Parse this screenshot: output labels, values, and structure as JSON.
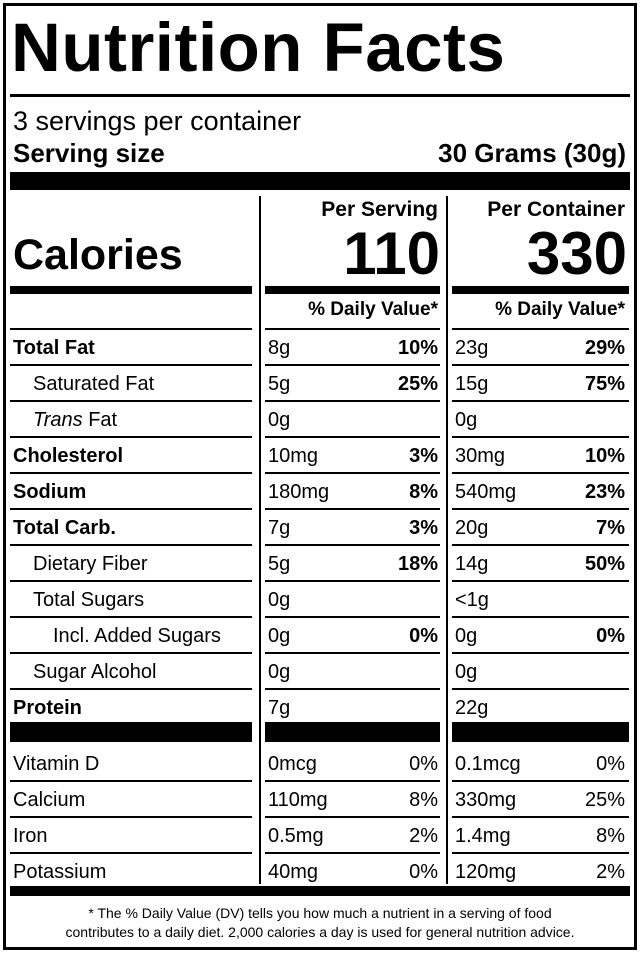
{
  "title": "Nutrition Facts",
  "servings_per_container": "3 servings per container",
  "serving_size_label": "Serving size",
  "serving_size_value": "30 Grams (30g)",
  "columns": {
    "per_serving": "Per Serving",
    "per_container": "Per Container",
    "daily_value": "% Daily Value*"
  },
  "calories": {
    "label": "Calories",
    "per_serving": "110",
    "per_container": "330"
  },
  "nutrients": [
    {
      "name": "Total Fat",
      "bold": true,
      "indent": 0,
      "s_amt": "8g",
      "s_pct": "10%",
      "c_amt": "23g",
      "c_pct": "29%"
    },
    {
      "name": "Saturated Fat",
      "bold": false,
      "indent": 1,
      "s_amt": "5g",
      "s_pct": "25%",
      "c_amt": "15g",
      "c_pct": "75%"
    },
    {
      "name_italic": "Trans",
      "name": " Fat",
      "bold": false,
      "indent": 1,
      "s_amt": "0g",
      "s_pct": "",
      "c_amt": "0g",
      "c_pct": ""
    },
    {
      "name": "Cholesterol",
      "bold": true,
      "indent": 0,
      "s_amt": "10mg",
      "s_pct": "3%",
      "c_amt": "30mg",
      "c_pct": "10%"
    },
    {
      "name": "Sodium",
      "bold": true,
      "indent": 0,
      "s_amt": "180mg",
      "s_pct": "8%",
      "c_amt": "540mg",
      "c_pct": "23%"
    },
    {
      "name": "Total Carb.",
      "bold": true,
      "indent": 0,
      "s_amt": "7g",
      "s_pct": "3%",
      "c_amt": "20g",
      "c_pct": "7%"
    },
    {
      "name": "Dietary Fiber",
      "bold": false,
      "indent": 1,
      "s_amt": "5g",
      "s_pct": "18%",
      "c_amt": "14g",
      "c_pct": "50%"
    },
    {
      "name": "Total Sugars",
      "bold": false,
      "indent": 1,
      "s_amt": "0g",
      "s_pct": "",
      "c_amt": "<1g",
      "c_pct": ""
    },
    {
      "name": "Incl. Added Sugars",
      "bold": false,
      "indent": 2,
      "s_amt": "0g",
      "s_pct": "0%",
      "c_amt": "0g",
      "c_pct": "0%"
    },
    {
      "name": "Sugar Alcohol",
      "bold": false,
      "indent": 1,
      "s_amt": "0g",
      "s_pct": "",
      "c_amt": "0g",
      "c_pct": ""
    },
    {
      "name": "Protein",
      "bold": true,
      "indent": 0,
      "s_amt": "7g",
      "s_pct": "",
      "c_amt": "22g",
      "c_pct": ""
    }
  ],
  "vitamins": [
    {
      "name": "Vitamin D",
      "s_amt": "0mcg",
      "s_pct": "0%",
      "c_amt": "0.1mcg",
      "c_pct": "0%"
    },
    {
      "name": "Calcium",
      "s_amt": "110mg",
      "s_pct": "8%",
      "c_amt": "330mg",
      "c_pct": "25%"
    },
    {
      "name": "Iron",
      "s_amt": "0.5mg",
      "s_pct": "2%",
      "c_amt": "1.4mg",
      "c_pct": "8%"
    },
    {
      "name": "Potassium",
      "s_amt": "40mg",
      "s_pct": "0%",
      "c_amt": "120mg",
      "c_pct": "2%"
    }
  ],
  "footnote_line1": "* The % Daily Value (DV) tells you how much a nutrient in a serving of food",
  "footnote_line2": "contributes to a daily diet. 2,000 calories a day is used for general nutrition advice."
}
